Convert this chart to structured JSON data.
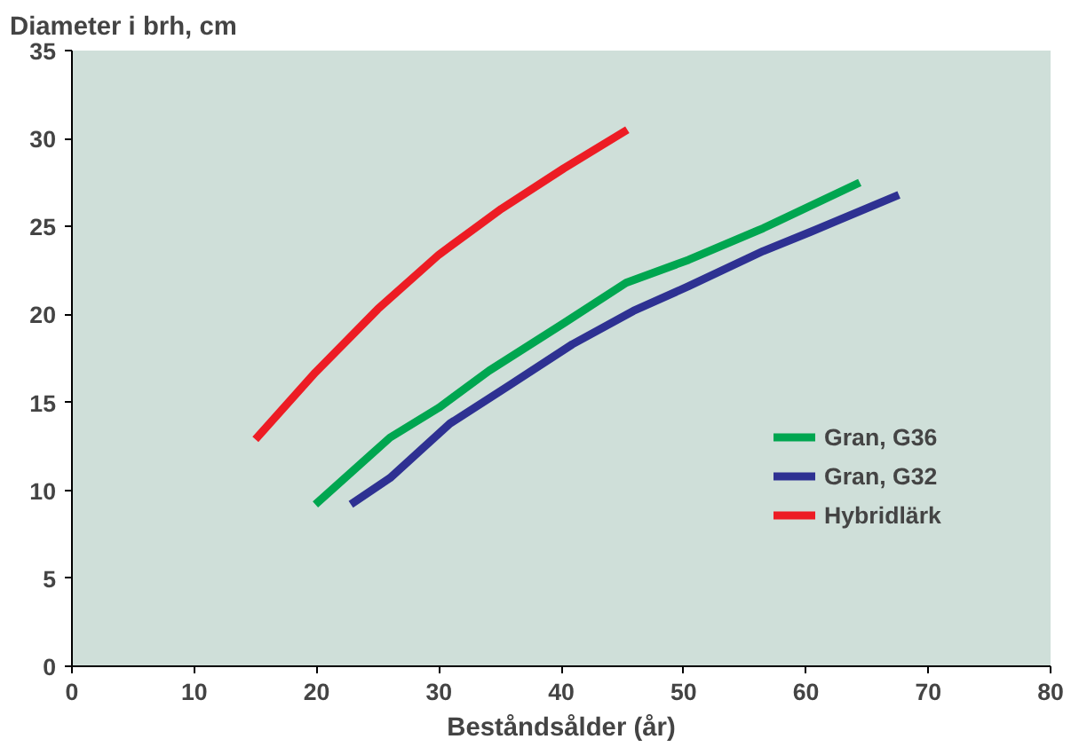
{
  "chart_data": {
    "type": "line",
    "ylabel": "Diameter i brh, cm",
    "xlabel": "Beståndsålder (år)",
    "xlim": [
      0,
      80
    ],
    "ylim": [
      0,
      35
    ],
    "xticks": [
      0,
      10,
      20,
      30,
      40,
      50,
      60,
      70,
      80
    ],
    "yticks": [
      0,
      5,
      10,
      15,
      20,
      25,
      30,
      35
    ],
    "grid": false,
    "legend": "right",
    "marker": "none",
    "line_style": "solid",
    "series": [
      {
        "name": "Gran, G36",
        "color": "#00a650",
        "x": [
          19.9,
          26,
          30,
          34.1,
          40.2,
          45.3,
          50.4,
          56.5,
          64.4
        ],
        "values": [
          9.2,
          13,
          14.7,
          16.8,
          19.5,
          21.8,
          23.1,
          24.9,
          27.5
        ]
      },
      {
        "name": "Gran, G32",
        "color": "#2e3192",
        "x": [
          22.8,
          26,
          30.9,
          35.6,
          40.9,
          45.9,
          50.4,
          56.5,
          60.4,
          67.6
        ],
        "values": [
          9.2,
          10.7,
          13.8,
          15.9,
          18.3,
          20.2,
          21.6,
          23.6,
          24.7,
          26.8
        ]
      },
      {
        "name": "Hybridlärk",
        "color": "#ed1c24",
        "x": [
          15,
          19.9,
          25,
          30,
          35.1,
          40.2,
          45.4
        ],
        "values": [
          12.9,
          16.7,
          20.3,
          23.4,
          26,
          28.3,
          30.5
        ]
      }
    ]
  }
}
